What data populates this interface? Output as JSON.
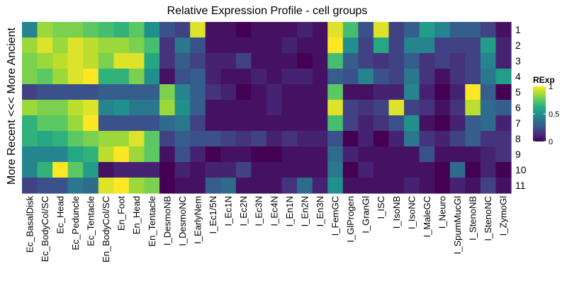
{
  "chart_data": {
    "type": "heatmap",
    "title": "Relative Expression Profile - cell groups",
    "xlabel": "",
    "ylabel": "More Recent <<< More Ancient",
    "columns": [
      "Ec_BasalDisk",
      "Ec_BodyCol/SC",
      "Ec_Head",
      "Ec_Peduncle",
      "Ec_Tentacle",
      "En_BodyCol/SC",
      "En_Foot",
      "En_Head",
      "En_Tentacle",
      "I_DesmoNB",
      "I_DesmoNC",
      "I_EarlyNem",
      "I_Ec1/5N",
      "I_Ec1N",
      "I_Ec2N",
      "I_Ec3N",
      "I_Ec4N",
      "I_En1N",
      "I_En2N",
      "I_En3N",
      "I_FemGC",
      "I_GlProgen",
      "I_GranGl",
      "I_ISC",
      "I_IsoNB",
      "I_IsoNC",
      "I_MaleGC",
      "I_Neuro",
      "I_SpumMucGl",
      "I_StenoNB",
      "I_StenoNC",
      "I_ZymoGl"
    ],
    "rows": [
      "1",
      "2",
      "3",
      "4",
      "5",
      "6",
      "7",
      "8",
      "9",
      "10",
      "11"
    ],
    "values": [
      [
        0.45,
        0.85,
        0.8,
        0.8,
        0.75,
        0.7,
        0.65,
        0.75,
        0.5,
        0.25,
        0.2,
        0.95,
        0.05,
        0.05,
        0.0,
        0.05,
        0.05,
        0.05,
        0.1,
        0.05,
        0.95,
        0.7,
        0.25,
        0.95,
        0.2,
        0.3,
        0.55,
        0.45,
        0.3,
        0.3,
        0.2,
        0.05
      ],
      [
        0.85,
        0.95,
        0.85,
        0.95,
        0.9,
        0.85,
        0.85,
        0.8,
        0.7,
        0.15,
        0.4,
        0.25,
        0.05,
        0.05,
        0.05,
        0.05,
        0.05,
        0.1,
        0.05,
        0.05,
        1.0,
        0.5,
        0.2,
        0.6,
        0.2,
        0.45,
        0.45,
        0.2,
        0.2,
        0.2,
        0.55,
        0.1
      ],
      [
        0.8,
        0.85,
        0.9,
        0.95,
        0.9,
        0.8,
        0.95,
        0.95,
        0.6,
        0.15,
        0.3,
        0.2,
        0.1,
        0.1,
        0.2,
        0.05,
        0.05,
        0.05,
        0.0,
        0.05,
        0.7,
        0.3,
        0.2,
        0.15,
        0.2,
        0.3,
        0.15,
        0.2,
        0.15,
        0.2,
        0.45,
        0.1
      ],
      [
        0.8,
        0.75,
        0.85,
        0.95,
        1.0,
        0.65,
        0.65,
        0.8,
        0.5,
        0.05,
        0.25,
        0.3,
        0.1,
        0.05,
        0.05,
        0.1,
        0.05,
        0.1,
        0.1,
        0.05,
        0.3,
        0.25,
        0.45,
        0.25,
        0.2,
        0.4,
        0.15,
        0.05,
        0.15,
        0.2,
        0.4,
        0.55
      ],
      [
        0.2,
        0.25,
        0.25,
        0.25,
        0.25,
        0.3,
        0.3,
        0.3,
        0.3,
        0.8,
        0.45,
        0.3,
        0.15,
        0.1,
        0.0,
        0.05,
        0.1,
        0.05,
        0.05,
        0.05,
        0.75,
        0.05,
        0.05,
        0.1,
        0.1,
        0.45,
        0.1,
        0.0,
        0.1,
        1.0,
        0.3,
        0.0
      ],
      [
        0.85,
        0.8,
        0.8,
        0.9,
        0.95,
        0.45,
        0.5,
        0.4,
        0.4,
        0.85,
        0.5,
        0.3,
        0.05,
        0.05,
        0.05,
        0.05,
        0.1,
        0.05,
        0.05,
        0.05,
        0.95,
        0.2,
        0.15,
        0.2,
        0.95,
        0.2,
        0.15,
        0.05,
        0.15,
        0.9,
        0.35,
        0.3
      ],
      [
        0.65,
        0.75,
        0.75,
        0.85,
        1.0,
        0.25,
        0.25,
        0.25,
        0.25,
        0.35,
        0.4,
        0.2,
        0.05,
        0.05,
        0.05,
        0.05,
        0.05,
        0.05,
        0.05,
        0.05,
        0.7,
        0.2,
        0.1,
        0.15,
        0.25,
        0.5,
        0.05,
        0.0,
        0.1,
        0.3,
        0.35,
        0.1
      ],
      [
        0.65,
        0.6,
        0.65,
        0.75,
        0.8,
        0.85,
        0.85,
        0.95,
        0.75,
        0.2,
        0.3,
        0.25,
        0.25,
        0.2,
        0.15,
        0.2,
        0.1,
        0.15,
        0.1,
        0.1,
        0.25,
        0.0,
        0.1,
        0.0,
        0.1,
        0.4,
        0.15,
        0.1,
        0.2,
        0.3,
        0.15,
        0.15
      ],
      [
        0.45,
        0.45,
        0.45,
        0.6,
        0.65,
        0.9,
        1.0,
        0.85,
        0.75,
        0.05,
        0.25,
        0.1,
        0.0,
        0.05,
        0.05,
        0.0,
        0.0,
        0.05,
        0.05,
        0.05,
        0.35,
        0.1,
        0.05,
        0.05,
        0.05,
        0.05,
        0.25,
        0.05,
        0.05,
        0.05,
        0.1,
        0.15
      ],
      [
        0.45,
        0.65,
        1.0,
        0.75,
        0.55,
        0.05,
        0.1,
        0.1,
        0.1,
        0.0,
        0.1,
        0.05,
        0.1,
        0.1,
        0.2,
        0.05,
        0.05,
        0.05,
        0.05,
        0.05,
        0.4,
        0.0,
        0.1,
        0.05,
        0.05,
        0.05,
        0.05,
        0.0,
        0.35,
        0.0,
        0.1,
        0.0
      ],
      [
        0.2,
        0.25,
        0.25,
        0.4,
        0.35,
        0.95,
        1.0,
        0.85,
        0.8,
        0.0,
        0.05,
        0.05,
        0.3,
        0.35,
        0.05,
        0.05,
        0.05,
        0.15,
        0.35,
        0.1,
        0.5,
        0.05,
        0.05,
        0.05,
        0.05,
        0.1,
        0.05,
        0.0,
        0.1,
        0.05,
        0.2,
        0.05
      ]
    ],
    "colorscale": "viridis",
    "legend": {
      "title": "RExp",
      "ticks": [
        0,
        0.5,
        1
      ],
      "tick_labels": [
        "0",
        "0.5",
        "1"
      ],
      "position": "right"
    }
  }
}
